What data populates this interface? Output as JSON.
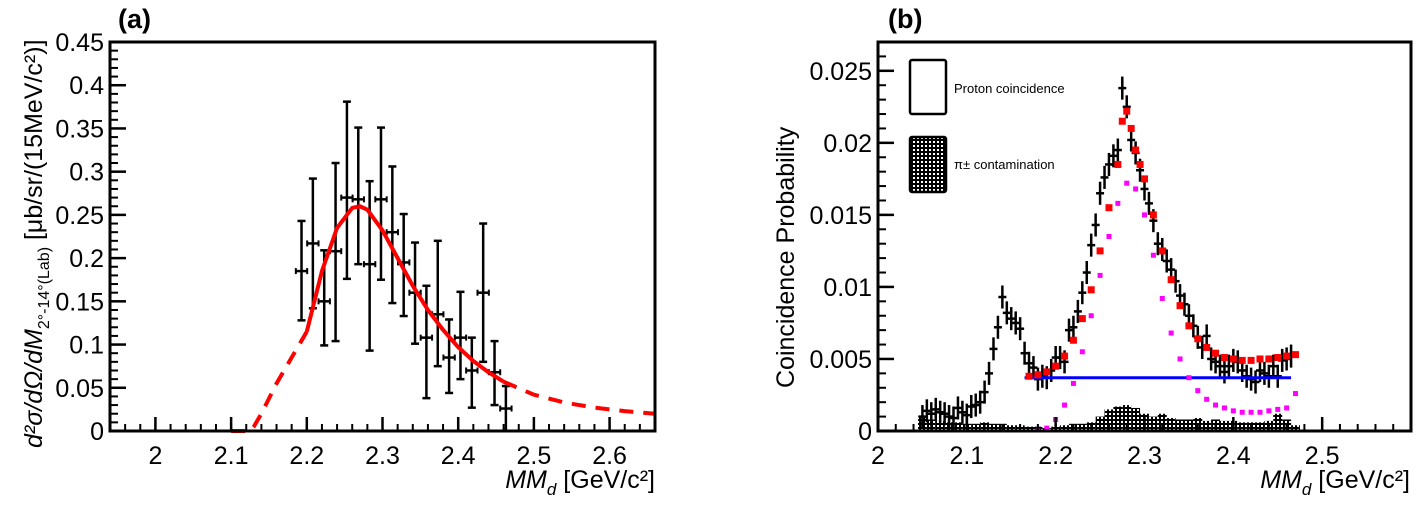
{
  "chart_data": [
    {
      "type": "scatter",
      "panel_label": "(a)",
      "xlabel_main": "MM",
      "xlabel_sub": "d",
      "xlabel_unit": " [GeV/c²]",
      "ylabel_parts": {
        "num": "d²σ/dΩ/dM",
        "sub": "2°-14°(Lab)",
        "unit": " [μb/sr/(15MeV/c²)]"
      },
      "xlim": [
        1.94,
        2.66
      ],
      "ylim": [
        0,
        0.45
      ],
      "xticks": [
        "2",
        "2.1",
        "2.2",
        "2.3",
        "2.4",
        "2.5",
        "2.6"
      ],
      "xtick_values": [
        2.0,
        2.1,
        2.2,
        2.3,
        2.4,
        2.5,
        2.6
      ],
      "yticks": [
        "0",
        "0.05",
        "0.1",
        "0.15",
        "0.2",
        "0.25",
        "0.3",
        "0.35",
        "0.4",
        "0.45"
      ],
      "ytick_values": [
        0,
        0.05,
        0.1,
        0.15,
        0.2,
        0.25,
        0.3,
        0.35,
        0.4,
        0.45
      ],
      "grid": false,
      "series": [
        {
          "name": "data",
          "color": "#000000",
          "x_err": 0.0075,
          "points": [
            {
              "x": 2.193,
              "y": 0.185,
              "err_lo": 0.057,
              "err_hi": 0.058
            },
            {
              "x": 2.208,
              "y": 0.217,
              "err_lo": 0.075,
              "err_hi": 0.075
            },
            {
              "x": 2.223,
              "y": 0.15,
              "err_lo": 0.051,
              "err_hi": 0.059
            },
            {
              "x": 2.238,
              "y": 0.208,
              "err_lo": 0.104,
              "err_hi": 0.102
            },
            {
              "x": 2.253,
              "y": 0.27,
              "err_lo": 0.094,
              "err_hi": 0.111
            },
            {
              "x": 2.268,
              "y": 0.268,
              "err_lo": 0.075,
              "err_hi": 0.083
            },
            {
              "x": 2.283,
              "y": 0.193,
              "err_lo": 0.1,
              "err_hi": 0.096
            },
            {
              "x": 2.298,
              "y": 0.268,
              "err_lo": 0.093,
              "err_hi": 0.083
            },
            {
              "x": 2.313,
              "y": 0.23,
              "err_lo": 0.082,
              "err_hi": 0.076
            },
            {
              "x": 2.328,
              "y": 0.195,
              "err_lo": 0.062,
              "err_hi": 0.056
            },
            {
              "x": 2.343,
              "y": 0.16,
              "err_lo": 0.059,
              "err_hi": 0.058
            },
            {
              "x": 2.358,
              "y": 0.108,
              "err_lo": 0.07,
              "err_hi": 0.06
            },
            {
              "x": 2.373,
              "y": 0.135,
              "err_lo": 0.06,
              "err_hi": 0.085
            },
            {
              "x": 2.388,
              "y": 0.085,
              "err_lo": 0.041,
              "err_hi": 0.044
            },
            {
              "x": 2.403,
              "y": 0.108,
              "err_lo": 0.048,
              "err_hi": 0.053
            },
            {
              "x": 2.418,
              "y": 0.07,
              "err_lo": 0.043,
              "err_hi": 0.038
            },
            {
              "x": 2.433,
              "y": 0.16,
              "err_lo": 0.08,
              "err_hi": 0.08
            },
            {
              "x": 2.448,
              "y": 0.068,
              "err_lo": 0.038,
              "err_hi": 0.036
            },
            {
              "x": 2.463,
              "y": 0.026,
              "err_lo": 0.026,
              "err_hi": 0.026
            }
          ]
        },
        {
          "name": "fit",
          "color": "#ff0000",
          "style": "solid",
          "x": [
            2.2,
            2.22,
            2.24,
            2.26,
            2.27,
            2.28,
            2.3,
            2.32,
            2.34,
            2.36,
            2.38,
            2.4,
            2.42,
            2.44,
            2.46
          ],
          "y": [
            0.115,
            0.185,
            0.235,
            0.258,
            0.26,
            0.256,
            0.232,
            0.2,
            0.168,
            0.14,
            0.117,
            0.097,
            0.081,
            0.068,
            0.057
          ]
        },
        {
          "name": "fit-extrapolation-low",
          "color": "#ff0000",
          "style": "dashed",
          "x": [
            2.1,
            2.125,
            2.13,
            2.14,
            2.16,
            2.18,
            2.2
          ],
          "y": [
            0.0,
            0.0,
            0.005,
            0.02,
            0.055,
            0.085,
            0.115
          ]
        },
        {
          "name": "fit-extrapolation-high",
          "color": "#ff0000",
          "style": "dashed",
          "x": [
            2.46,
            2.5,
            2.54,
            2.58,
            2.62,
            2.66
          ],
          "y": [
            0.057,
            0.042,
            0.033,
            0.027,
            0.023,
            0.02
          ]
        }
      ]
    },
    {
      "type": "scatter",
      "panel_label": "(b)",
      "xlabel_main": "MM",
      "xlabel_sub": "d",
      "xlabel_unit": " [GeV/c²]",
      "ylabel": "Coincidence Probability",
      "xlim": [
        2.0,
        2.6
      ],
      "ylim": [
        0,
        0.027
      ],
      "xticks": [
        "2",
        "2.1",
        "2.2",
        "2.3",
        "2.4",
        "2.5"
      ],
      "xtick_values": [
        2.0,
        2.1,
        2.2,
        2.3,
        2.4,
        2.5
      ],
      "yticks": [
        "0",
        "0.005",
        "0.01",
        "0.015",
        "0.02",
        "0.025"
      ],
      "ytick_values": [
        0,
        0.005,
        0.01,
        0.015,
        0.02,
        0.025
      ],
      "grid": false,
      "legend": {
        "placement": "top-left",
        "entries": [
          {
            "label": "Proton coincidence",
            "symbol": "open-box"
          },
          {
            "label": "π± contamination",
            "symbol": "hatched-box"
          }
        ]
      },
      "series": [
        {
          "name": "proton-coincidence-data",
          "color": "#000000",
          "x": [
            2.05,
            2.055,
            2.06,
            2.065,
            2.07,
            2.075,
            2.08,
            2.085,
            2.09,
            2.095,
            2.1,
            2.105,
            2.11,
            2.115,
            2.12,
            2.125,
            2.13,
            2.135,
            2.14,
            2.145,
            2.15,
            2.155,
            2.16,
            2.165,
            2.17,
            2.175,
            2.18,
            2.185,
            2.19,
            2.195,
            2.2,
            2.205,
            2.21,
            2.215,
            2.22,
            2.225,
            2.23,
            2.235,
            2.24,
            2.245,
            2.25,
            2.255,
            2.26,
            2.265,
            2.27,
            2.275,
            2.28,
            2.285,
            2.29,
            2.295,
            2.3,
            2.305,
            2.31,
            2.315,
            2.32,
            2.325,
            2.33,
            2.335,
            2.34,
            2.345,
            2.35,
            2.355,
            2.36,
            2.365,
            2.37,
            2.375,
            2.38,
            2.385,
            2.39,
            2.395,
            2.4,
            2.405,
            2.41,
            2.415,
            2.42,
            2.425,
            2.43,
            2.435,
            2.44,
            2.445,
            2.45,
            2.455,
            2.46,
            2.465
          ],
          "y": [
            0.001,
            0.0014,
            0.0012,
            0.0015,
            0.0013,
            0.0012,
            0.001,
            0.0009,
            0.0016,
            0.0013,
            0.0011,
            0.0017,
            0.0018,
            0.002,
            0.0027,
            0.004,
            0.0057,
            0.0072,
            0.0093,
            0.0082,
            0.0078,
            0.0075,
            0.0071,
            0.0054,
            0.0047,
            0.0044,
            0.0036,
            0.0038,
            0.0037,
            0.0042,
            0.0051,
            0.0051,
            0.0048,
            0.007,
            0.0072,
            0.0083,
            0.0096,
            0.011,
            0.0129,
            0.0143,
            0.0165,
            0.0176,
            0.0185,
            0.0191,
            0.0195,
            0.0238,
            0.0225,
            0.0202,
            0.0193,
            0.0181,
            0.0168,
            0.0158,
            0.0146,
            0.013,
            0.0126,
            0.0118,
            0.0112,
            0.0104,
            0.0094,
            0.0088,
            0.008,
            0.0073,
            0.0065,
            0.0058,
            0.0066,
            0.005,
            0.0048,
            0.0045,
            0.0041,
            0.0045,
            0.0049,
            0.0048,
            0.0042,
            0.0038,
            0.0036,
            0.0034,
            0.0042,
            0.004,
            0.0038,
            0.0045,
            0.0038,
            0.0049,
            0.005,
            0.0052
          ],
          "y_err": 0.0008
        },
        {
          "name": "pion-contamination",
          "color": "#000000",
          "style": "hatched-histogram",
          "x": [
            2.05,
            2.06,
            2.07,
            2.08,
            2.09,
            2.1,
            2.11,
            2.12,
            2.13,
            2.14,
            2.15,
            2.16,
            2.17,
            2.18,
            2.19,
            2.2,
            2.21,
            2.22,
            2.23,
            2.24,
            2.25,
            2.26,
            2.27,
            2.28,
            2.29,
            2.3,
            2.31,
            2.32,
            2.33,
            2.34,
            2.35,
            2.36,
            2.37,
            2.38,
            2.39,
            2.4,
            2.41,
            2.42,
            2.43,
            2.44,
            2.45,
            2.46,
            2.47
          ],
          "y": [
            0.001,
            0.0008,
            0.0007,
            0.0006,
            0.0006,
            0.0005,
            0.0005,
            0.0006,
            0.0005,
            0.0005,
            0.0004,
            0.0004,
            0.0003,
            0.0003,
            0.0002,
            0.0003,
            0.0004,
            0.0005,
            0.0005,
            0.0006,
            0.001,
            0.0015,
            0.0017,
            0.0018,
            0.0016,
            0.0012,
            0.001,
            0.0012,
            0.0009,
            0.0008,
            0.0008,
            0.0009,
            0.0007,
            0.0008,
            0.0007,
            0.0007,
            0.0006,
            0.0006,
            0.0006,
            0.0007,
            0.0012,
            0.0008,
            0.0004
          ]
        },
        {
          "name": "fit-total",
          "color": "#ff0000",
          "x": [
            2.17,
            2.18,
            2.19,
            2.2,
            2.21,
            2.22,
            2.23,
            2.24,
            2.25,
            2.26,
            2.27,
            2.275,
            2.28,
            2.285,
            2.29,
            2.295,
            2.3,
            2.31,
            2.32,
            2.33,
            2.34,
            2.35,
            2.36,
            2.37,
            2.38,
            2.39,
            2.4,
            2.41,
            2.42,
            2.43,
            2.44,
            2.45,
            2.46,
            2.47
          ],
          "y": [
            0.0038,
            0.0039,
            0.0041,
            0.0045,
            0.0052,
            0.0063,
            0.0078,
            0.0098,
            0.0125,
            0.0155,
            0.0185,
            0.0215,
            0.0222,
            0.021,
            0.0195,
            0.0185,
            0.0175,
            0.015,
            0.0125,
            0.0105,
            0.0087,
            0.0073,
            0.0064,
            0.0058,
            0.0054,
            0.0051,
            0.005,
            0.0049,
            0.0049,
            0.005,
            0.005,
            0.0051,
            0.0052,
            0.0053
          ]
        },
        {
          "name": "fit-signal",
          "color": "#ff00ff",
          "x": [
            2.17,
            2.18,
            2.19,
            2.2,
            2.21,
            2.22,
            2.23,
            2.24,
            2.25,
            2.26,
            2.27,
            2.28,
            2.29,
            2.3,
            2.31,
            2.32,
            2.33,
            2.34,
            2.35,
            2.36,
            2.37,
            2.38,
            2.39,
            2.4,
            2.41,
            2.42,
            2.43,
            2.44,
            2.45,
            2.46,
            2.47
          ],
          "y": [
            -0.0002,
            0.0,
            0.0002,
            0.0008,
            0.0018,
            0.0033,
            0.0055,
            0.008,
            0.0108,
            0.0135,
            0.0158,
            0.0172,
            0.0168,
            0.015,
            0.0122,
            0.0092,
            0.0068,
            0.005,
            0.0037,
            0.0028,
            0.0022,
            0.0018,
            0.0016,
            0.0014,
            0.0013,
            0.0013,
            0.0013,
            0.0014,
            0.0015,
            0.0016,
            0.0026
          ]
        },
        {
          "name": "background-constant",
          "color": "#0000ff",
          "x": [
            2.165,
            2.465
          ],
          "y": [
            0.0037,
            0.0037
          ]
        }
      ]
    }
  ]
}
